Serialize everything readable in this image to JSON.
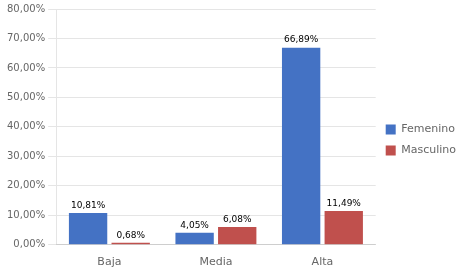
{
  "chart_data": {
    "type": "bar",
    "categories": [
      "Baja",
      "Media",
      "Alta"
    ],
    "series": [
      {
        "name": "Femenino",
        "color": "#4472C4",
        "values": [
          10.81,
          4.05,
          66.89
        ],
        "value_labels": [
          "10,81%",
          "4,05%",
          "66,89%"
        ]
      },
      {
        "name": "Masculino",
        "color": "#C0504D",
        "values": [
          0.68,
          6.08,
          11.49
        ],
        "value_labels": [
          "0,68%",
          "6,08%",
          "11,49%"
        ]
      }
    ],
    "ylim": [
      0,
      80
    ],
    "yticks": [
      {
        "value": 0,
        "label": "0,00%"
      },
      {
        "value": 10,
        "label": "10,00%"
      },
      {
        "value": 20,
        "label": "20,00%"
      },
      {
        "value": 30,
        "label": "30,00%"
      },
      {
        "value": 40,
        "label": "40,00%"
      },
      {
        "value": 50,
        "label": "50,00%"
      },
      {
        "value": 60,
        "label": "60,00%"
      },
      {
        "value": 70,
        "label": "70,00%"
      },
      {
        "value": 80,
        "label": "80,00%"
      }
    ],
    "grid": "y",
    "legend": "right",
    "data_labels": true
  }
}
